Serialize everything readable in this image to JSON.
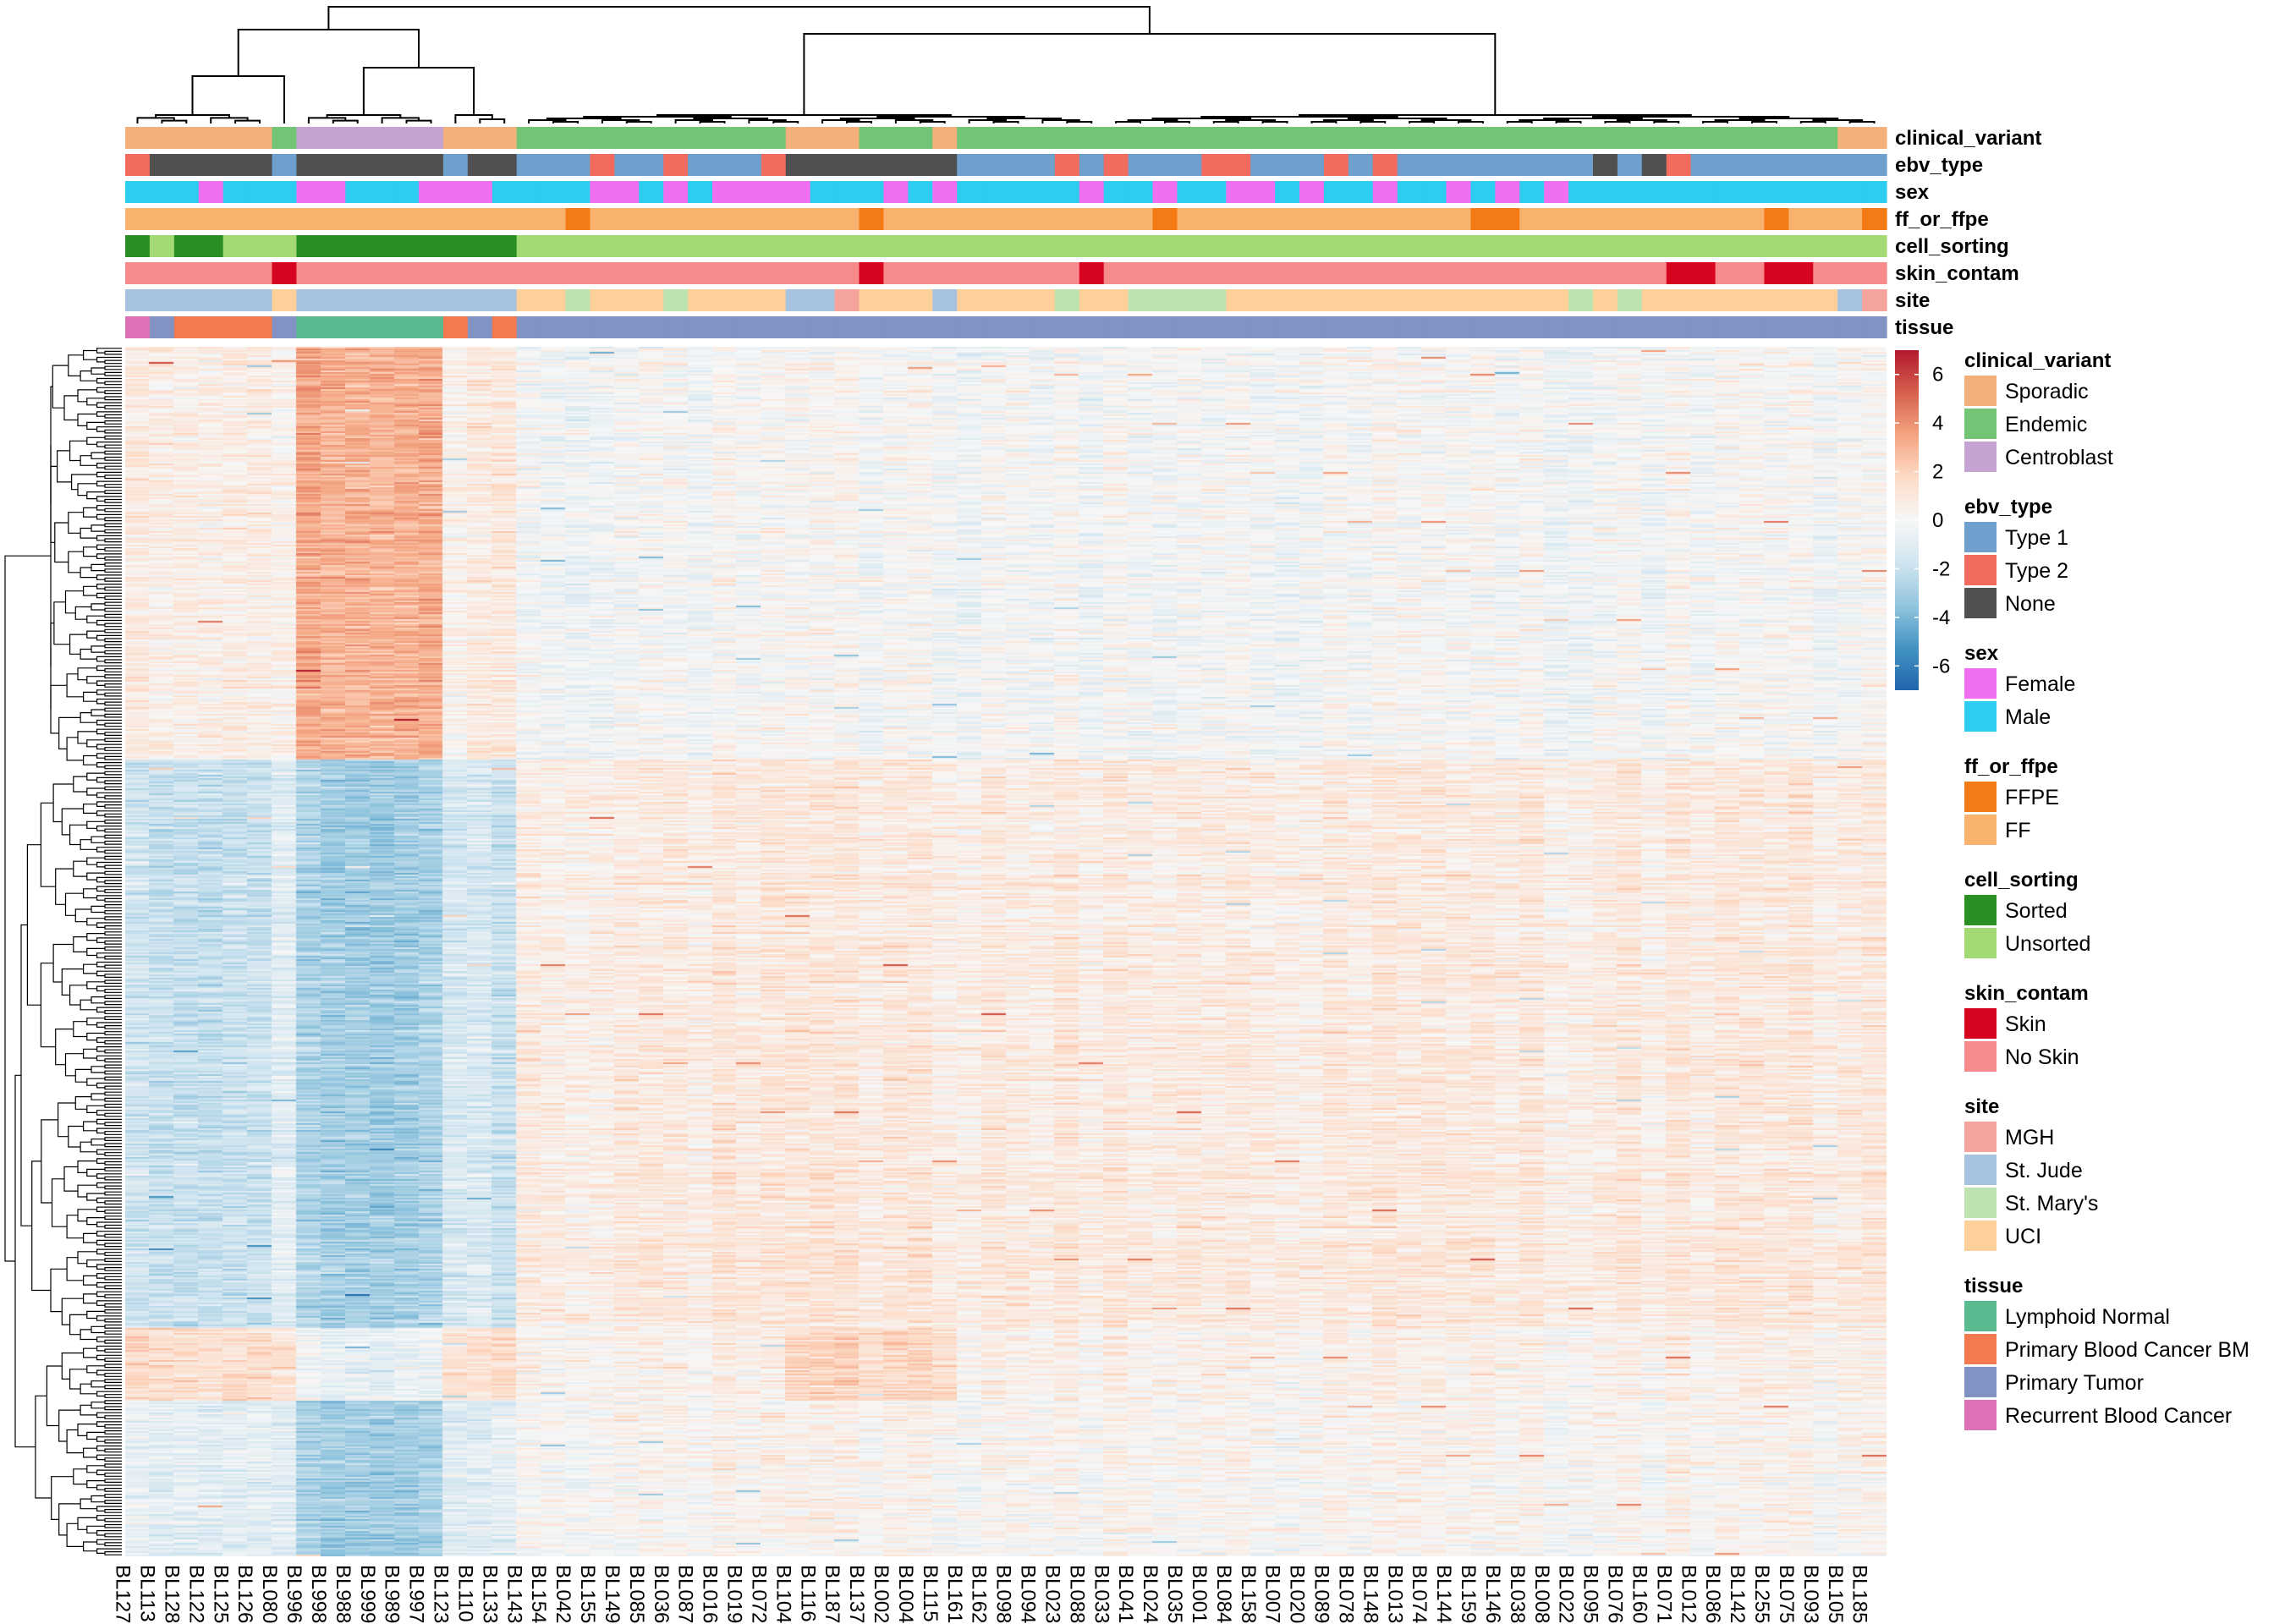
{
  "chart_data": {
    "type": "heatmap",
    "title": "",
    "samples": [
      "BL127",
      "BL113",
      "BL128",
      "BL122",
      "BL125",
      "BL126",
      "BL080",
      "BL996",
      "BL998",
      "BL988",
      "BL999",
      "BL989",
      "BL997",
      "BL123",
      "BL110",
      "BL133",
      "BL143",
      "BL154",
      "BL042",
      "BL155",
      "BL149",
      "BL085",
      "BL036",
      "BL087",
      "BL016",
      "BL019",
      "BL072",
      "BL104",
      "BL116",
      "BL187",
      "BL137",
      "BL002",
      "BL004",
      "BL115",
      "BL161",
      "BL162",
      "BL098",
      "BL094",
      "BL023",
      "BL088",
      "BL033",
      "BL041",
      "BL024",
      "BL035",
      "BL001",
      "BL084",
      "BL158",
      "BL007",
      "BL020",
      "BL089",
      "BL078",
      "BL148",
      "BL013",
      "BL074",
      "BL144",
      "BL159",
      "BL146",
      "BL038",
      "BL008",
      "BL022",
      "BL095",
      "BL076",
      "BL160",
      "BL071",
      "BL012",
      "BL086",
      "BL142",
      "BL255",
      "BL075",
      "BL093",
      "BL105",
      "BL185"
    ],
    "sample_clusters": {
      "Normal-sorted": [
        "BL996",
        "BL998",
        "BL988",
        "BL999",
        "BL989",
        "BL997"
      ],
      "Group-A": [
        "BL127",
        "BL113",
        "BL128",
        "BL122",
        "BL125",
        "BL126",
        "BL080",
        "BL123",
        "BL110",
        "BL133"
      ],
      "Group-B": [
        "BL143",
        "BL154",
        "BL042",
        "BL155",
        "BL149",
        "BL085",
        "BL036",
        "BL087",
        "BL016",
        "BL019",
        "BL072",
        "BL104",
        "BL116",
        "BL187",
        "BL137",
        "BL002",
        "BL004",
        "BL115",
        "BL161",
        "BL162",
        "BL098",
        "BL094",
        "BL023",
        "BL088",
        "BL033",
        "BL041",
        "BL024",
        "BL035",
        "BL001",
        "BL084",
        "BL158",
        "BL007",
        "BL020",
        "BL089",
        "BL078",
        "BL148",
        "BL013",
        "BL074",
        "BL144",
        "BL159",
        "BL146",
        "BL038",
        "BL008",
        "BL022",
        "BL095",
        "BL076",
        "BL160",
        "BL071",
        "BL012",
        "BL086",
        "BL142",
        "BL255",
        "BL075",
        "BL093",
        "BL105",
        "BL185"
      ]
    },
    "color_scale": {
      "ticks": [
        6,
        4,
        2,
        0,
        -2,
        -4,
        -6
      ],
      "range": [
        -7,
        7
      ],
      "colors": [
        "#2166ac",
        "#4393c3",
        "#92c5de",
        "#d1e5f0",
        "#f7f7f7",
        "#fddbc7",
        "#f4a582",
        "#d6604d",
        "#b2182b"
      ]
    },
    "annotations": [
      {
        "name": "clinical_variant",
        "values": [
          "Sporadic",
          "Sporadic",
          "Sporadic",
          "Sporadic",
          "Sporadic",
          "Sporadic",
          "Endemic",
          "Centroblast",
          "Centroblast",
          "Centroblast",
          "Centroblast",
          "Centroblast",
          "Centroblast",
          "Sporadic",
          "Sporadic",
          "Sporadic",
          "Endemic",
          "Endemic",
          "Endemic",
          "Endemic",
          "Endemic",
          "Endemic",
          "Endemic",
          "Endemic",
          "Endemic",
          "Endemic",
          "Endemic",
          "Sporadic",
          "Sporadic",
          "Sporadic",
          "Endemic",
          "Endemic",
          "Endemic",
          "Sporadic",
          "Endemic",
          "Endemic",
          "Endemic",
          "Endemic",
          "Endemic",
          "Endemic",
          "Endemic",
          "Endemic",
          "Endemic",
          "Endemic",
          "Endemic",
          "Endemic",
          "Endemic",
          "Endemic",
          "Endemic",
          "Endemic",
          "Endemic",
          "Endemic",
          "Endemic",
          "Endemic",
          "Endemic",
          "Endemic",
          "Endemic",
          "Endemic",
          "Endemic",
          "Endemic",
          "Endemic",
          "Endemic",
          "Endemic",
          "Endemic",
          "Endemic",
          "Endemic",
          "Endemic",
          "Endemic",
          "Endemic",
          "Endemic",
          "Sporadic",
          "Sporadic"
        ]
      },
      {
        "name": "ebv_type",
        "values": [
          "Type 2",
          "None",
          "None",
          "None",
          "None",
          "None",
          "Type 1",
          "None",
          "None",
          "None",
          "None",
          "None",
          "None",
          "Type 1",
          "None",
          "None",
          "Type 1",
          "Type 1",
          "Type 1",
          "Type 2",
          "Type 1",
          "Type 1",
          "Type 2",
          "Type 1",
          "Type 1",
          "Type 1",
          "Type 2",
          "None",
          "None",
          "None",
          "None",
          "None",
          "None",
          "None",
          "Type 1",
          "Type 1",
          "Type 1",
          "Type 1",
          "Type 2",
          "Type 1",
          "Type 2",
          "Type 1",
          "Type 1",
          "Type 1",
          "Type 2",
          "Type 2",
          "Type 1",
          "Type 1",
          "Type 1",
          "Type 2",
          "Type 1",
          "Type 2",
          "Type 1",
          "Type 1",
          "Type 1",
          "Type 1",
          "Type 1",
          "Type 1",
          "Type 1",
          "Type 1",
          "None",
          "Type 1",
          "None",
          "Type 2",
          "Type 1",
          "Type 1",
          "Type 1",
          "Type 1",
          "Type 1",
          "Type 1",
          "Type 1",
          "Type 1"
        ]
      },
      {
        "name": "sex",
        "values": [
          "Male",
          "Male",
          "Male",
          "Female",
          "Male",
          "Male",
          "Male",
          "Female",
          "Female",
          "Male",
          "Male",
          "Male",
          "Female",
          "Female",
          "Female",
          "Male",
          "Male",
          "Male",
          "Male",
          "Female",
          "Female",
          "Male",
          "Female",
          "Male",
          "Female",
          "Female",
          "Female",
          "Female",
          "Male",
          "Male",
          "Male",
          "Female",
          "Male",
          "Female",
          "Male",
          "Male",
          "Male",
          "Male",
          "Male",
          "Female",
          "Male",
          "Male",
          "Female",
          "Male",
          "Male",
          "Female",
          "Female",
          "Male",
          "Female",
          "Male",
          "Male",
          "Female",
          "Male",
          "Male",
          "Female",
          "Male",
          "Female",
          "Male",
          "Female",
          "Male",
          "Male",
          "Male",
          "Male",
          "Male",
          "Male",
          "Male",
          "Male",
          "Male",
          "Male",
          "Male",
          "Male",
          "Male"
        ]
      },
      {
        "name": "ff_or_ffpe",
        "values": [
          "FF",
          "FF",
          "FF",
          "FF",
          "FF",
          "FF",
          "FF",
          "FF",
          "FF",
          "FF",
          "FF",
          "FF",
          "FF",
          "FF",
          "FF",
          "FF",
          "FF",
          "FF",
          "FFPE",
          "FF",
          "FF",
          "FF",
          "FF",
          "FF",
          "FF",
          "FF",
          "FF",
          "FF",
          "FF",
          "FF",
          "FFPE",
          "FF",
          "FF",
          "FF",
          "FF",
          "FF",
          "FF",
          "FF",
          "FF",
          "FF",
          "FF",
          "FF",
          "FFPE",
          "FF",
          "FF",
          "FF",
          "FF",
          "FF",
          "FF",
          "FF",
          "FF",
          "FF",
          "FF",
          "FF",
          "FF",
          "FFPE",
          "FFPE",
          "FF",
          "FF",
          "FF",
          "FF",
          "FF",
          "FF",
          "FF",
          "FF",
          "FF",
          "FF",
          "FFPE",
          "FF",
          "FF",
          "FF",
          "FFPE"
        ]
      },
      {
        "name": "cell_sorting",
        "values": [
          "Sorted",
          "Unsorted",
          "Sorted",
          "Sorted",
          "Unsorted",
          "Unsorted",
          "Unsorted",
          "Sorted",
          "Sorted",
          "Sorted",
          "Sorted",
          "Sorted",
          "Sorted",
          "Sorted",
          "Sorted",
          "Sorted",
          "Unsorted",
          "Unsorted",
          "Unsorted",
          "Unsorted",
          "Unsorted",
          "Unsorted",
          "Unsorted",
          "Unsorted",
          "Unsorted",
          "Unsorted",
          "Unsorted",
          "Unsorted",
          "Unsorted",
          "Unsorted",
          "Unsorted",
          "Unsorted",
          "Unsorted",
          "Unsorted",
          "Unsorted",
          "Unsorted",
          "Unsorted",
          "Unsorted",
          "Unsorted",
          "Unsorted",
          "Unsorted",
          "Unsorted",
          "Unsorted",
          "Unsorted",
          "Unsorted",
          "Unsorted",
          "Unsorted",
          "Unsorted",
          "Unsorted",
          "Unsorted",
          "Unsorted",
          "Unsorted",
          "Unsorted",
          "Unsorted",
          "Unsorted",
          "Unsorted",
          "Unsorted",
          "Unsorted",
          "Unsorted",
          "Unsorted",
          "Unsorted",
          "Unsorted",
          "Unsorted",
          "Unsorted",
          "Unsorted",
          "Unsorted",
          "Unsorted",
          "Unsorted",
          "Unsorted",
          "Unsorted",
          "Unsorted",
          "Unsorted"
        ]
      },
      {
        "name": "skin_contam",
        "values": [
          "No Skin",
          "No Skin",
          "No Skin",
          "No Skin",
          "No Skin",
          "No Skin",
          "Skin",
          "No Skin",
          "No Skin",
          "No Skin",
          "No Skin",
          "No Skin",
          "No Skin",
          "No Skin",
          "No Skin",
          "No Skin",
          "No Skin",
          "No Skin",
          "No Skin",
          "No Skin",
          "No Skin",
          "No Skin",
          "No Skin",
          "No Skin",
          "No Skin",
          "No Skin",
          "No Skin",
          "No Skin",
          "No Skin",
          "No Skin",
          "Skin",
          "No Skin",
          "No Skin",
          "No Skin",
          "No Skin",
          "No Skin",
          "No Skin",
          "No Skin",
          "No Skin",
          "Skin",
          "No Skin",
          "No Skin",
          "No Skin",
          "No Skin",
          "No Skin",
          "No Skin",
          "No Skin",
          "No Skin",
          "No Skin",
          "No Skin",
          "No Skin",
          "No Skin",
          "No Skin",
          "No Skin",
          "No Skin",
          "No Skin",
          "No Skin",
          "No Skin",
          "No Skin",
          "No Skin",
          "No Skin",
          "No Skin",
          "No Skin",
          "Skin",
          "Skin",
          "No Skin",
          "No Skin",
          "Skin",
          "Skin",
          "No Skin",
          "No Skin",
          "No Skin"
        ]
      },
      {
        "name": "site",
        "values": [
          "St. Jude",
          "St. Jude",
          "St. Jude",
          "St. Jude",
          "St. Jude",
          "St. Jude",
          "UCI",
          "St. Jude",
          "St. Jude",
          "St. Jude",
          "St. Jude",
          "St. Jude",
          "St. Jude",
          "St. Jude",
          "St. Jude",
          "St. Jude",
          "UCI",
          "UCI",
          "St. Mary's",
          "UCI",
          "UCI",
          "UCI",
          "St. Mary's",
          "UCI",
          "UCI",
          "UCI",
          "UCI",
          "St. Jude",
          "St. Jude",
          "MGH",
          "UCI",
          "UCI",
          "UCI",
          "St. Jude",
          "UCI",
          "UCI",
          "UCI",
          "UCI",
          "St. Mary's",
          "UCI",
          "UCI",
          "St. Mary's",
          "St. Mary's",
          "St. Mary's",
          "St. Mary's",
          "UCI",
          "UCI",
          "UCI",
          "UCI",
          "UCI",
          "UCI",
          "UCI",
          "UCI",
          "UCI",
          "UCI",
          "UCI",
          "UCI",
          "UCI",
          "UCI",
          "St. Mary's",
          "UCI",
          "St. Mary's",
          "UCI",
          "UCI",
          "UCI",
          "UCI",
          "UCI",
          "UCI",
          "UCI",
          "UCI",
          "St. Jude",
          "MGH"
        ]
      },
      {
        "name": "tissue",
        "values": [
          "Recurrent Blood Cancer",
          "Primary Tumor",
          "Primary Blood Cancer BM",
          "Primary Blood Cancer BM",
          "Primary Blood Cancer BM",
          "Primary Blood Cancer BM",
          "Primary Tumor",
          "Lymphoid Normal",
          "Lymphoid Normal",
          "Lymphoid Normal",
          "Lymphoid Normal",
          "Lymphoid Normal",
          "Lymphoid Normal",
          "Primary Blood Cancer BM",
          "Primary Tumor",
          "Primary Blood Cancer BM",
          "Primary Tumor",
          "Primary Tumor",
          "Primary Tumor",
          "Primary Tumor",
          "Primary Tumor",
          "Primary Tumor",
          "Primary Tumor",
          "Primary Tumor",
          "Primary Tumor",
          "Primary Tumor",
          "Primary Tumor",
          "Primary Tumor",
          "Primary Tumor",
          "Primary Tumor",
          "Primary Tumor",
          "Primary Tumor",
          "Primary Tumor",
          "Primary Tumor",
          "Primary Tumor",
          "Primary Tumor",
          "Primary Tumor",
          "Primary Tumor",
          "Primary Tumor",
          "Primary Tumor",
          "Primary Tumor",
          "Primary Tumor",
          "Primary Tumor",
          "Primary Tumor",
          "Primary Tumor",
          "Primary Tumor",
          "Primary Tumor",
          "Primary Tumor",
          "Primary Tumor",
          "Primary Tumor",
          "Primary Tumor",
          "Primary Tumor",
          "Primary Tumor",
          "Primary Tumor",
          "Primary Tumor",
          "Primary Tumor",
          "Primary Tumor",
          "Primary Tumor",
          "Primary Tumor",
          "Primary Tumor",
          "Primary Tumor",
          "Primary Tumor",
          "Primary Tumor",
          "Primary Tumor",
          "Primary Tumor",
          "Primary Tumor",
          "Primary Tumor",
          "Primary Tumor",
          "Primary Tumor",
          "Primary Tumor",
          "Primary Tumor",
          "Primary Tumor"
        ]
      }
    ],
    "legend": [
      {
        "title": "clinical_variant",
        "items": [
          {
            "label": "Sporadic",
            "color": "#f4b07a"
          },
          {
            "label": "Endemic",
            "color": "#74c476"
          },
          {
            "label": "Centroblast",
            "color": "#c4a2d2"
          }
        ]
      },
      {
        "title": "ebv_type",
        "items": [
          {
            "label": "Type 1",
            "color": "#6e9fcd"
          },
          {
            "label": "Type 2",
            "color": "#f26b5f"
          },
          {
            "label": "None",
            "color": "#505050"
          }
        ]
      },
      {
        "title": "sex",
        "items": [
          {
            "label": "Female",
            "color": "#f06ff0"
          },
          {
            "label": "Male",
            "color": "#2ccdee"
          }
        ]
      },
      {
        "title": "ff_or_ffpe",
        "items": [
          {
            "label": "FFPE",
            "color": "#f47a16"
          },
          {
            "label": "FF",
            "color": "#f8b26e"
          }
        ]
      },
      {
        "title": "cell_sorting",
        "items": [
          {
            "label": "Sorted",
            "color": "#2a8f24"
          },
          {
            "label": "Unsorted",
            "color": "#a4da74"
          }
        ]
      },
      {
        "title": "skin_contam",
        "items": [
          {
            "label": "Skin",
            "color": "#d7041f"
          },
          {
            "label": "No Skin",
            "color": "#f78a8a"
          }
        ]
      },
      {
        "title": "site",
        "items": [
          {
            "label": "MGH",
            "color": "#f4a49c"
          },
          {
            "label": "St. Jude",
            "color": "#a6c2de"
          },
          {
            "label": "St. Mary's",
            "color": "#bde3b0"
          },
          {
            "label": "UCI",
            "color": "#fdd09a"
          }
        ]
      },
      {
        "title": "tissue",
        "items": [
          {
            "label": "Lymphoid Normal",
            "color": "#5ab98f"
          },
          {
            "label": "Primary Blood Cancer BM",
            "color": "#f37a4f"
          },
          {
            "label": "Primary Tumor",
            "color": "#8192c3"
          },
          {
            "label": "Recurrent Blood Cancer",
            "color": "#dd71b6"
          }
        ]
      }
    ],
    "grid": false
  }
}
